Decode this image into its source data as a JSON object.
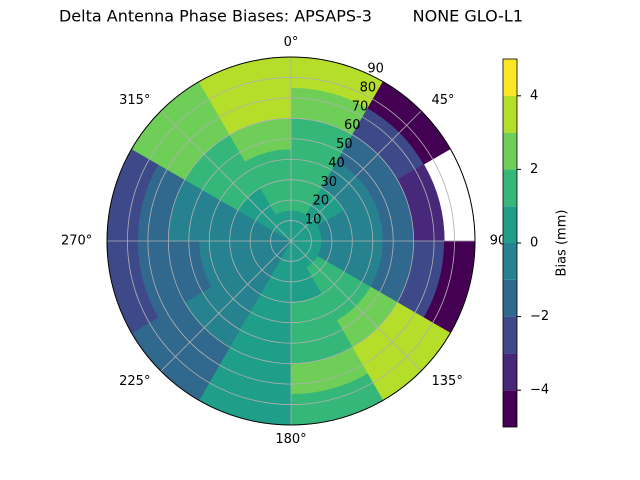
{
  "chart_data": {
    "type": "polar-contour",
    "title": "Delta Antenna Phase Biases: APSAPS-3        NONE GLO-L1",
    "colorbar_label": "Bias (mm)",
    "azimuth_bins": [
      0,
      30,
      60,
      90,
      120,
      150,
      180,
      210,
      240,
      270,
      300,
      330,
      360
    ],
    "radial_bins": [
      0,
      15,
      30,
      45,
      60,
      75,
      90
    ],
    "values": [
      [
        0.5,
        0,
        0,
        0,
        0.5,
        0.5,
        0.5,
        -0.5,
        -0.5,
        -0.5,
        0.5,
        0.5
      ],
      [
        1,
        0,
        -0.5,
        -0.5,
        1,
        0.5,
        0.5,
        -0.5,
        -0.5,
        -0.5,
        0.5,
        1
      ],
      [
        1.5,
        -1,
        -1,
        -1,
        1.5,
        1,
        0.5,
        -0.5,
        -1,
        -0.5,
        1,
        1.5
      ],
      [
        1.5,
        -2,
        -2,
        -1.5,
        2,
        1.5,
        0.5,
        -1,
        -1.5,
        -1,
        1.5,
        2
      ],
      [
        2.5,
        -3,
        -3.5,
        -3,
        3,
        2,
        0.5,
        -1.5,
        -2,
        -2,
        2,
        3
      ],
      [
        3.5,
        -4.5,
        null,
        -4.5,
        3.5,
        1.5,
        0.5,
        -1.5,
        -2.5,
        -2.5,
        2.5,
        3.5
      ]
    ],
    "levels": [
      -5,
      -4,
      -3,
      -2,
      -1,
      0,
      1,
      2,
      3,
      4,
      5
    ],
    "level_colors": [
      "#440154",
      "#482878",
      "#3e4989",
      "#31688e",
      "#26828e",
      "#1f9e89",
      "#35b779",
      "#6ece58",
      "#b5de2b",
      "#fde725"
    ],
    "rlim": [
      0,
      90
    ],
    "rticks": [
      10,
      20,
      30,
      40,
      50,
      60,
      70,
      80,
      90
    ],
    "theta_ticks": [
      {
        "value": 0,
        "label": "0°"
      },
      {
        "value": 45,
        "label": "45°"
      },
      {
        "value": 90,
        "label": "90°"
      },
      {
        "value": 135,
        "label": "135°"
      },
      {
        "value": 180,
        "label": "180°"
      },
      {
        "value": 225,
        "label": "225°"
      },
      {
        "value": 270,
        "label": "270°"
      },
      {
        "value": 315,
        "label": "315°"
      }
    ],
    "clim": [
      -5,
      5
    ],
    "cticks": [
      {
        "value": -4,
        "label": "−4"
      },
      {
        "value": -2,
        "label": "−2"
      },
      0,
      2,
      4
    ],
    "grid": true
  }
}
